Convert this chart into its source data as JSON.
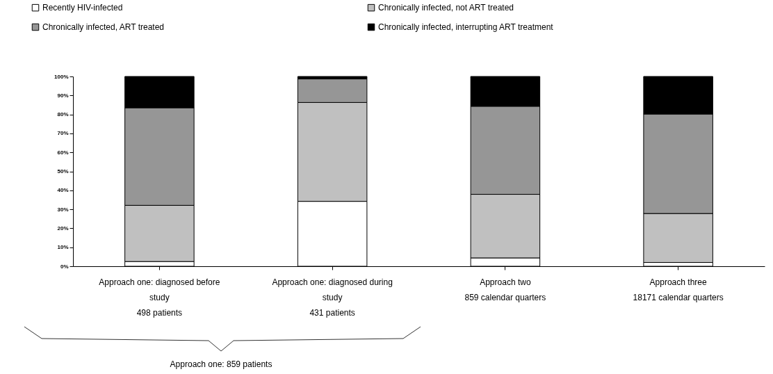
{
  "chart_data": {
    "type": "bar",
    "stacked": true,
    "categories": [
      "Approach one: diagnosed before study",
      "Approach one: diagnosed during study",
      "Approach two",
      "Approach three"
    ],
    "series": [
      {
        "name": "Recently HIV-infected",
        "color": "#ffffff",
        "values": [
          2.5,
          34.2,
          4.4,
          2
        ]
      },
      {
        "name": "Chronically infected, not ART treated",
        "color": "#c0c0c0",
        "values": [
          29.6,
          52.1,
          33.5,
          25.8
        ]
      },
      {
        "name": "Chronically infected, ART treated",
        "color": "#969696",
        "values": [
          51.4,
          12.4,
          46.4,
          52.4
        ]
      },
      {
        "name": "Chronically infected, interrupting ART treatment",
        "color": "#000000",
        "values": [
          16.5,
          1.3,
          15.7,
          19.8
        ]
      }
    ],
    "ylim": [
      0,
      100
    ],
    "yticks": [
      {
        "value": 0,
        "label": "0%"
      },
      {
        "value": 10,
        "label": "10%"
      },
      {
        "value": 20,
        "label": "20%"
      },
      {
        "value": 30,
        "label": "30%"
      },
      {
        "value": 40,
        "label": "40%"
      },
      {
        "value": 50,
        "label": "50%"
      },
      {
        "value": 60,
        "label": "60%"
      },
      {
        "value": 70,
        "label": "70%"
      },
      {
        "value": 80,
        "label": "80%"
      },
      {
        "value": 90,
        "label": "90%"
      },
      {
        "value": 100,
        "label": "100%"
      }
    ],
    "annotations": [
      "498 patients",
      "431 patients",
      "859 calendar quarters",
      "18171 calendar quarters",
      "Approach one: 859 patients"
    ],
    "grid": false,
    "legend": "top"
  }
}
